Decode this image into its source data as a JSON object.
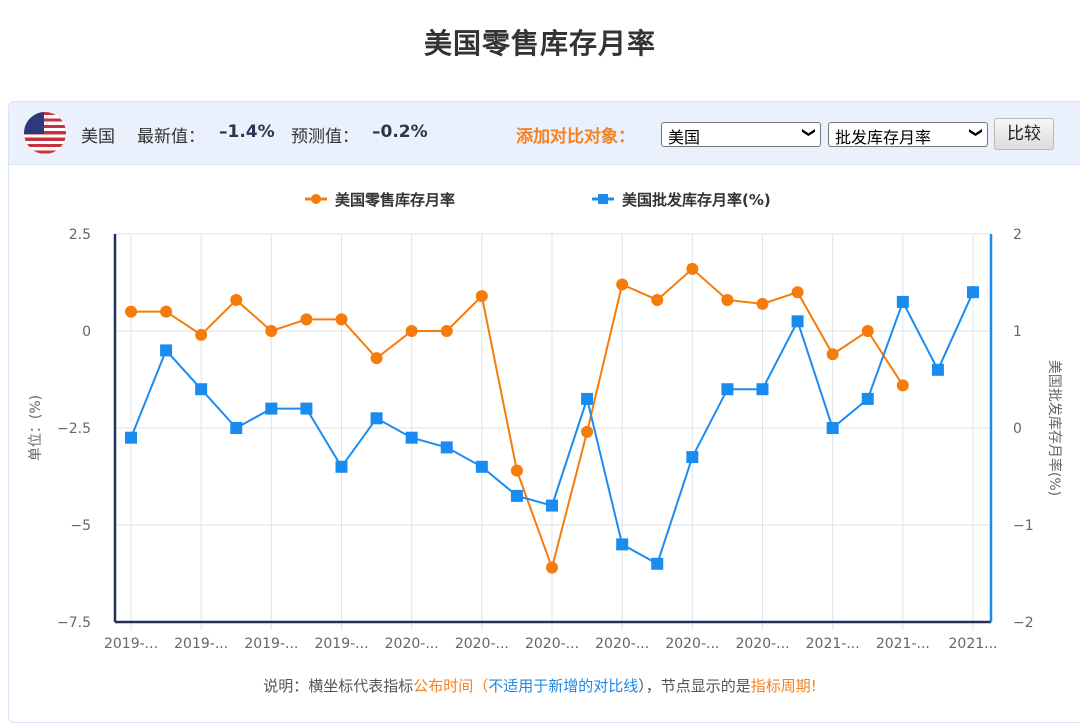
{
  "page_title": "美国零售库存月率",
  "toolbar": {
    "flag_icon": "us-flag-icon",
    "country": "美国",
    "latest_label": "最新值：",
    "latest_value": "–1.4%",
    "forecast_label": "预测值：",
    "forecast_value": "–0.2%",
    "add_compare_label": "添加对比对象：",
    "country_select_value": "美国",
    "indicator_select_value": "批发库存月率",
    "compare_button": "比较",
    "chevron_icon": "❯"
  },
  "note": {
    "prefix": "说明：横坐标代表指标",
    "highlight1": "公布时间",
    "paren_open": "（",
    "highlight2": "不适用于新增的对比线",
    "paren_close": "）",
    "middle": "，节点显示的是",
    "highlight3": "指标周期",
    "suffix": "!"
  },
  "colors": {
    "retail": "#f57c0a",
    "wholesale": "#1a8cf0",
    "left_axis": "#233058",
    "right_axis": "#1a8cf0",
    "grid": "#e2e2e2",
    "accent_orange": "#f58220"
  },
  "chart_data": {
    "type": "line",
    "title": "美国零售库存月率",
    "xlabel": "",
    "ylabel": "单位：(%)",
    "ylabel_right": "美国批发库存月率(%)",
    "ylim": [
      -7.5,
      2.5
    ],
    "ylim_right": [
      -2,
      2
    ],
    "yticks": [
      "2.5",
      "0",
      "-2.5",
      "-5",
      "-7.5"
    ],
    "yticks_right": [
      "2",
      "1",
      "0",
      "-1",
      "-2"
    ],
    "xtick_labels": [
      "2019-...",
      "2019-...",
      "2019-...",
      "2019-...",
      "2020-...",
      "2020-...",
      "2020-...",
      "2020-...",
      "2020-...",
      "2020-...",
      "2021-...",
      "2021-...",
      "2021..."
    ],
    "grid": true,
    "legend_position": "top",
    "series": [
      {
        "name": "美国零售库存月率",
        "axis": "left",
        "marker": "circle",
        "values": [
          0.5,
          0.5,
          -0.1,
          0.8,
          0.0,
          0.3,
          0.3,
          -0.7,
          0.0,
          0.0,
          0.9,
          -3.6,
          -6.1,
          -2.6,
          1.2,
          0.8,
          1.6,
          0.8,
          0.7,
          1.0,
          -0.6,
          0.0,
          -1.4
        ]
      },
      {
        "name": "美国批发库存月率(%)",
        "axis": "right",
        "marker": "square",
        "values": [
          -0.1,
          0.8,
          0.4,
          0.0,
          0.2,
          0.2,
          -0.4,
          0.1,
          -0.1,
          -0.2,
          -0.4,
          -0.7,
          -0.8,
          0.3,
          -1.2,
          -1.4,
          -0.3,
          0.4,
          0.4,
          1.1,
          0.0,
          0.3,
          1.3,
          0.6,
          1.4
        ]
      }
    ]
  }
}
